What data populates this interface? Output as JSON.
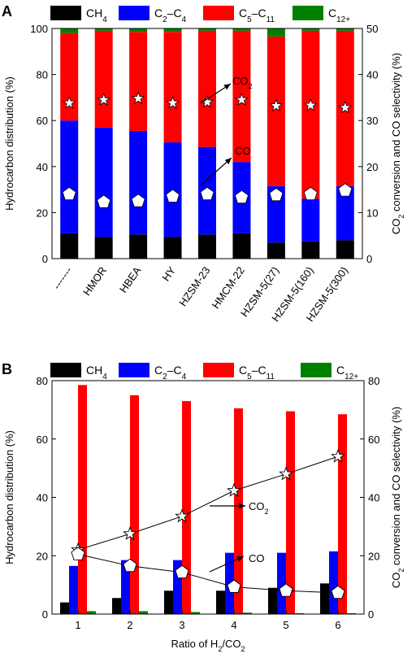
{
  "colors": {
    "CH4": "#000000",
    "C2C4": "#0000ff",
    "C5C11": "#ff0000",
    "C12": "#008000"
  },
  "legend": [
    {
      "key": "CH4",
      "main": "CH",
      "sub": "4"
    },
    {
      "key": "C2C4",
      "main": "C",
      "sub": "2",
      "mid": "–C",
      "sub2": "4"
    },
    {
      "key": "C5C11",
      "main": "C",
      "sub": "5",
      "mid": "–C",
      "sub2": "11"
    },
    {
      "key": "C12",
      "main": "C",
      "sub": "12+"
    }
  ],
  "chart_data": [
    {
      "panel": "A",
      "type": "bar",
      "stacked": true,
      "categories": [
        "-------",
        "HMOR",
        "HBEA",
        "HY",
        "HZSM-23",
        "HMCM-22",
        "HZSM-5(27)",
        "HZSM-5(160)",
        "HZSM-5(300)"
      ],
      "series": [
        {
          "name": "CH4",
          "values": [
            11,
            9.5,
            10.5,
            9.5,
            10.5,
            11,
            7,
            7.5,
            8
          ]
        },
        {
          "name": "C2–C4",
          "values": [
            49,
            47.5,
            45,
            41,
            38,
            31,
            24.5,
            18.5,
            23.5
          ]
        },
        {
          "name": "C5–C11",
          "values": [
            38,
            42,
            43,
            48,
            50.5,
            57,
            65,
            73,
            67.5
          ]
        },
        {
          "name": "C12+",
          "values": [
            2,
            1,
            1.5,
            1.5,
            1,
            1,
            3.5,
            1,
            1
          ]
        }
      ],
      "co2_conversion": [
        33.8,
        34.5,
        34.8,
        33.8,
        34.0,
        34.5,
        33.2,
        33.3,
        32.8
      ],
      "co_selectivity": [
        14.0,
        12.3,
        12.5,
        13.5,
        14.0,
        13.3,
        13.8,
        14.0,
        14.8
      ],
      "ylabel_left": "Hydrocarbon distribution (%)",
      "ylabel_right_parts": [
        "CO",
        "2",
        " conversion and CO selectivity (%)"
      ],
      "ylim_left": [
        0,
        100
      ],
      "yticks_left": [
        0,
        20,
        40,
        60,
        80,
        100
      ],
      "ylim_right": [
        0,
        50
      ],
      "yticks_right": [
        0,
        10,
        20,
        30,
        40,
        50
      ],
      "annotations": [
        {
          "main": "CO",
          "sub": "2"
        },
        {
          "main": "CO",
          "sub": ""
        }
      ]
    },
    {
      "panel": "B",
      "type": "bar",
      "stacked": false,
      "categories": [
        "1",
        "2",
        "3",
        "4",
        "5",
        "6"
      ],
      "series": [
        {
          "name": "CH4",
          "values": [
            4,
            5.5,
            8,
            8,
            9,
            10.5
          ]
        },
        {
          "name": "C2–C4",
          "values": [
            16.5,
            18.5,
            18.5,
            21,
            21,
            21.5
          ]
        },
        {
          "name": "C5–C11",
          "values": [
            78.5,
            75,
            73,
            70.5,
            69.5,
            68.5
          ]
        },
        {
          "name": "C12+",
          "values": [
            1,
            1,
            0.7,
            0.5,
            0.3,
            0.3
          ]
        }
      ],
      "co2_conversion": [
        22,
        27.5,
        33.5,
        42.3,
        48,
        54
      ],
      "co_selectivity": [
        20.5,
        16.5,
        14.3,
        9.3,
        8.0,
        7.3
      ],
      "xlabel_parts": [
        "Ratio of H",
        "2",
        "/CO",
        "2"
      ],
      "ylabel_left": "Hydrocarbon distribution (%)",
      "ylabel_right_parts": [
        "CO",
        "2",
        " conversion and CO selectivity (%)"
      ],
      "ylim_left": [
        0,
        80
      ],
      "yticks_left": [
        0,
        20,
        40,
        60,
        80
      ],
      "ylim_right": [
        0,
        80
      ],
      "yticks_right": [
        0,
        20,
        40,
        60,
        80
      ],
      "annotations": [
        {
          "main": "CO",
          "sub": "2"
        },
        {
          "main": "CO",
          "sub": ""
        }
      ]
    }
  ]
}
